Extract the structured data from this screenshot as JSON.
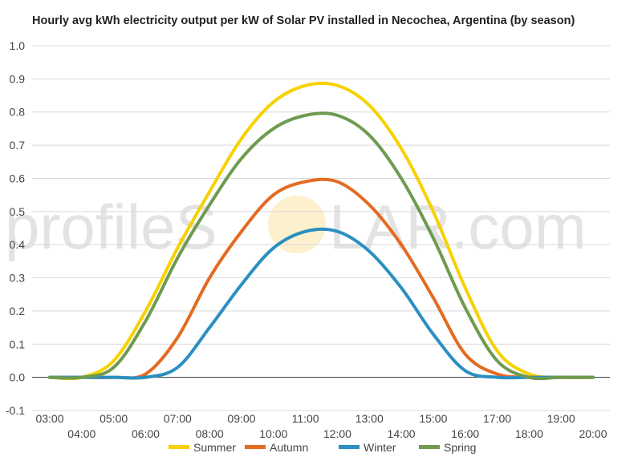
{
  "chart_data": {
    "type": "line",
    "title": "Hourly avg kWh electricity output per kW of Solar PV installed in Necochea, Argentina (by season)",
    "xlabel": "",
    "ylabel": "",
    "x": [
      "03:00",
      "04:00",
      "05:00",
      "06:00",
      "07:00",
      "08:00",
      "09:00",
      "10:00",
      "11:00",
      "12:00",
      "13:00",
      "14:00",
      "15:00",
      "16:00",
      "17:00",
      "18:00",
      "19:00",
      "20:00"
    ],
    "ylim": [
      -0.1,
      1.0
    ],
    "yticks": [
      "-0.1",
      "0.0",
      "0.1",
      "0.2",
      "0.3",
      "0.4",
      "0.5",
      "0.6",
      "0.7",
      "0.8",
      "0.9",
      "1.0"
    ],
    "grid": true,
    "legend_position": "bottom",
    "series": [
      {
        "name": "Summer",
        "color": "#f7d100",
        "values": [
          0.0,
          0.0,
          0.05,
          0.2,
          0.39,
          0.56,
          0.72,
          0.83,
          0.88,
          0.88,
          0.82,
          0.69,
          0.5,
          0.27,
          0.08,
          0.01,
          0.0,
          0.0
        ]
      },
      {
        "name": "Autumn",
        "color": "#e36b22",
        "values": [
          0.0,
          0.0,
          0.0,
          0.01,
          0.12,
          0.3,
          0.44,
          0.55,
          0.59,
          0.59,
          0.52,
          0.4,
          0.24,
          0.07,
          0.01,
          0.0,
          0.0,
          0.0
        ]
      },
      {
        "name": "Winter",
        "color": "#2a8fc1",
        "values": [
          0.0,
          0.0,
          0.0,
          0.0,
          0.03,
          0.15,
          0.28,
          0.39,
          0.44,
          0.44,
          0.38,
          0.27,
          0.13,
          0.02,
          0.0,
          0.0,
          0.0,
          0.0
        ]
      },
      {
        "name": "Spring",
        "color": "#6f9a4f",
        "values": [
          0.0,
          0.0,
          0.03,
          0.17,
          0.36,
          0.52,
          0.66,
          0.75,
          0.79,
          0.79,
          0.73,
          0.6,
          0.42,
          0.21,
          0.05,
          0.0,
          0.0,
          0.0
        ]
      }
    ]
  },
  "watermark": {
    "text_left": "profileS",
    "text_right": "LAR.com"
  }
}
